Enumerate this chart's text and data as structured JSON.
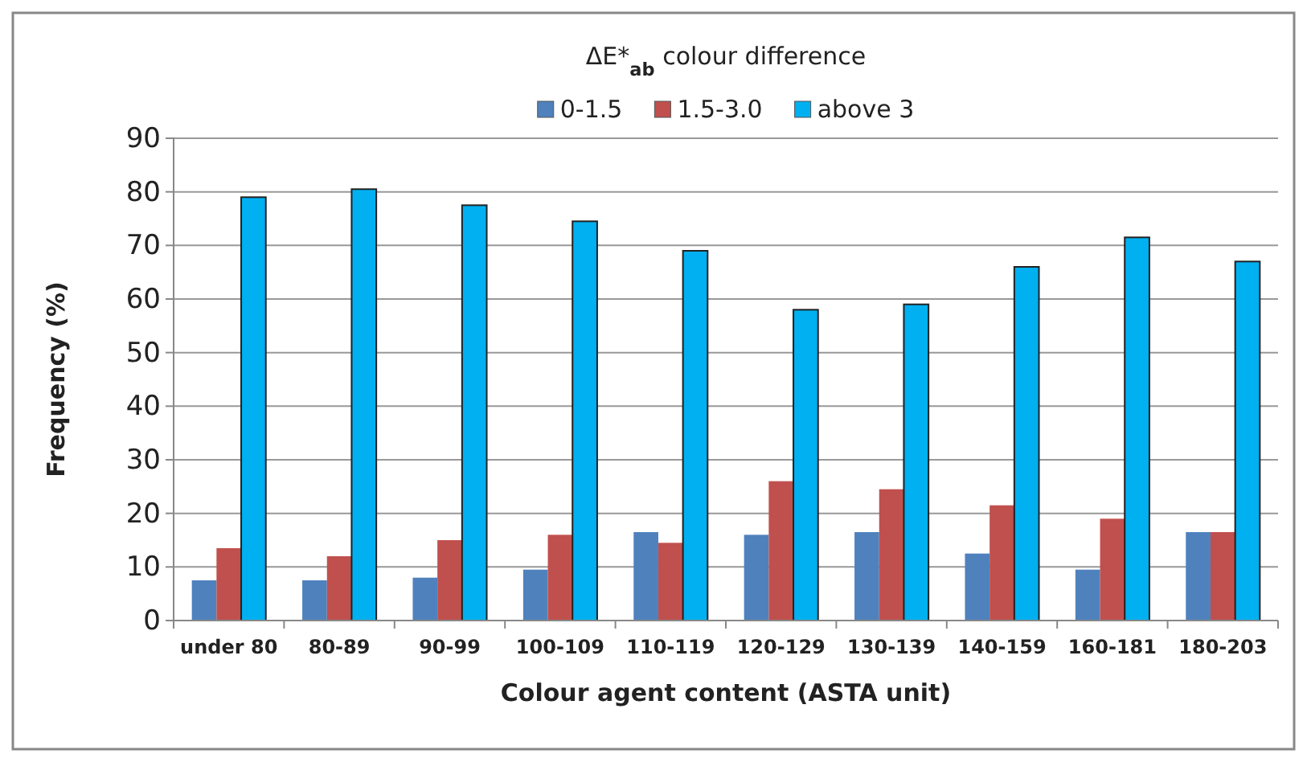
{
  "chart_data": {
    "type": "bar",
    "title": "ΔE*$_{ab}$ colour difference",
    "xlabel": "Colour agent content (ASTA unit)",
    "ylabel": "Frequency (%)",
    "categories": [
      "under 80",
      "80-89",
      "90-99",
      "100-109",
      "110-119",
      "120-129",
      "130-139",
      "140-159",
      "160-181",
      "180-203"
    ],
    "series": [
      {
        "name": "0-1.5",
        "color": "#4f81bd",
        "values": [
          7.5,
          7.5,
          8,
          9.5,
          16.5,
          16,
          16.5,
          12.5,
          9.5,
          16.5
        ]
      },
      {
        "name": "1.5-3.0",
        "color": "#c0504d",
        "values": [
          13.5,
          12,
          15,
          16,
          14.5,
          26,
          24.5,
          21.5,
          19,
          16.5
        ]
      },
      {
        "name": "above 3",
        "color": "#00b0f0",
        "values": [
          79,
          80.5,
          77.5,
          74.5,
          69,
          58,
          59,
          66,
          71.5,
          67
        ]
      }
    ],
    "ylim": [
      0,
      90
    ],
    "yticks": [
      0,
      10,
      20,
      30,
      40,
      50,
      60,
      70,
      80,
      90
    ],
    "grid": "y",
    "legend": "top"
  }
}
